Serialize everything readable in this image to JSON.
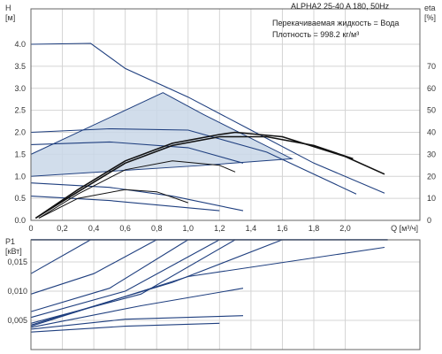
{
  "chart_data": [
    {
      "type": "line",
      "annotations": [
        "ALPHA2 25-40 A 180, 50Hz",
        "Перекачиваемая жидкость = Вода",
        "Плотность = 998.2 кг/м³"
      ],
      "ylabel_lines": [
        "H",
        "[м]"
      ],
      "y2label_lines": [
        "eta",
        "[%]"
      ],
      "xlabel": "Q [м³/ч]",
      "xlim": [
        0,
        2.5
      ],
      "ylim": [
        0,
        4.5
      ],
      "y2lim": [
        0,
        90
      ],
      "x_ticks": [
        "0",
        "0,2",
        "0,4",
        "0,6",
        "0,8",
        "1,0",
        "1,2",
        "1,4",
        "1,6",
        "1,8",
        "2,0"
      ],
      "y_ticks": [
        "0.0",
        "0.5",
        "1.0",
        "1.5",
        "2.0",
        "2.5",
        "3.0",
        "3.5",
        "4.0"
      ],
      "y2_ticks": [
        "0",
        "10",
        "20",
        "30",
        "40",
        "50",
        "60",
        "70"
      ],
      "grid": true,
      "shaded_region": [
        [
          0,
          1.2
        ],
        [
          0,
          1.5
        ],
        [
          0.84,
          2.9
        ],
        [
          1.1,
          2.4
        ],
        [
          1.66,
          1.4
        ],
        [
          1.1,
          1.25
        ],
        [
          0,
          1.0
        ]
      ],
      "series": [
        {
          "role": "head",
          "color": "#1f3f7f",
          "values": [
            [
              0,
              4.0
            ],
            [
              0.38,
              4.02
            ],
            [
              0.6,
              3.45
            ],
            [
              1.0,
              2.8
            ],
            [
              1.4,
              2.05
            ],
            [
              1.8,
              1.3
            ],
            [
              2.25,
              0.62
            ]
          ]
        },
        {
          "role": "head",
          "color": "#1f3f7f",
          "values": [
            [
              0,
              2.0
            ],
            [
              0.5,
              2.08
            ],
            [
              1.0,
              2.05
            ],
            [
              1.5,
              1.55
            ],
            [
              2.07,
              0.6
            ]
          ]
        },
        {
          "role": "head",
          "color": "#1f3f7f",
          "values": [
            [
              0,
              1.72
            ],
            [
              0.5,
              1.78
            ],
            [
              1.0,
              1.65
            ],
            [
              1.35,
              1.3
            ]
          ]
        },
        {
          "role": "head",
          "color": "#1f3f7f",
          "values": [
            [
              0,
              0.85
            ],
            [
              0.5,
              0.75
            ],
            [
              0.9,
              0.55
            ],
            [
              1.35,
              0.22
            ]
          ]
        },
        {
          "role": "head",
          "color": "#1f3f7f",
          "values": [
            [
              0,
              0.55
            ],
            [
              0.5,
              0.45
            ],
            [
              1.2,
              0.22
            ]
          ]
        },
        {
          "role": "efficiency",
          "color": "#111111",
          "values": [
            [
              0.03,
              1
            ],
            [
              0.3,
              14
            ],
            [
              0.6,
              27
            ],
            [
              0.9,
              35
            ],
            [
              1.2,
              39
            ],
            [
              1.3,
              40
            ],
            [
              1.6,
              38
            ],
            [
              2.0,
              29
            ],
            [
              2.25,
              21
            ]
          ]
        },
        {
          "role": "efficiency",
          "color": "#111111",
          "values": [
            [
              0.03,
              1
            ],
            [
              0.3,
              13
            ],
            [
              0.6,
              26
            ],
            [
              0.9,
              34
            ],
            [
              1.2,
              38
            ],
            [
              1.5,
              38
            ],
            [
              1.8,
              34
            ],
            [
              2.05,
              28
            ]
          ]
        },
        {
          "role": "efficiency",
          "color": "#111111",
          "values": [
            [
              0.05,
              1
            ],
            [
              0.3,
              12
            ],
            [
              0.6,
              23
            ],
            [
              0.9,
              27
            ],
            [
              1.2,
              25
            ],
            [
              1.3,
              22
            ]
          ]
        },
        {
          "role": "efficiency",
          "color": "#111111",
          "values": [
            [
              0.05,
              1
            ],
            [
              0.3,
              10
            ],
            [
              0.6,
              14
            ],
            [
              0.8,
              13
            ],
            [
              1.0,
              8
            ]
          ]
        }
      ]
    },
    {
      "type": "line",
      "ylabel_lines": [
        "P1",
        "[кВт]"
      ],
      "xlim": [
        0,
        2.5
      ],
      "ylim": [
        0,
        0.02
      ],
      "y_ticks": [
        "0,005",
        "0,010",
        "0,015"
      ],
      "grid": true,
      "series": [
        {
          "role": "power",
          "color": "#1f3f7f",
          "values": [
            [
              0,
              0.0188
            ],
            [
              2.27,
              0.0188
            ]
          ]
        },
        {
          "role": "power",
          "color": "#1f3f7f",
          "values": [
            [
              0,
              0.013
            ],
            [
              0.38,
              0.0188
            ]
          ]
        },
        {
          "role": "power",
          "color": "#1f3f7f",
          "values": [
            [
              0,
              0.0095
            ],
            [
              0.4,
              0.013
            ],
            [
              0.8,
              0.0188
            ]
          ]
        },
        {
          "role": "power",
          "color": "#1f3f7f",
          "values": [
            [
              0,
              0.0065
            ],
            [
              0.5,
              0.0105
            ],
            [
              1.0,
              0.0188
            ]
          ]
        },
        {
          "role": "power",
          "color": "#1f3f7f",
          "values": [
            [
              0,
              0.0055
            ],
            [
              0.6,
              0.01
            ],
            [
              1.2,
              0.0188
            ]
          ]
        },
        {
          "role": "power",
          "color": "#1f3f7f",
          "values": [
            [
              0,
              0.0045
            ],
            [
              0.7,
              0.0095
            ],
            [
              1.3,
              0.0188
            ]
          ]
        },
        {
          "role": "power",
          "color": "#1f3f7f",
          "values": [
            [
              0,
              0.0042
            ],
            [
              0.9,
              0.0115
            ],
            [
              1.6,
              0.0188
            ]
          ]
        },
        {
          "role": "power",
          "color": "#1f3f7f",
          "values": [
            [
              0,
              0.004
            ],
            [
              1.0,
              0.0125
            ],
            [
              2.25,
              0.0175
            ]
          ]
        },
        {
          "role": "power",
          "color": "#1f3f7f",
          "values": [
            [
              0,
              0.0038
            ],
            [
              0.7,
              0.0075
            ],
            [
              1.35,
              0.0105
            ]
          ]
        },
        {
          "role": "power",
          "color": "#1f3f7f",
          "values": [
            [
              0,
              0.0035
            ],
            [
              0.6,
              0.0052
            ],
            [
              1.35,
              0.0058
            ]
          ]
        },
        {
          "role": "power",
          "color": "#1f3f7f",
          "values": [
            [
              0,
              0.003
            ],
            [
              0.6,
              0.004
            ],
            [
              1.2,
              0.0045
            ]
          ]
        }
      ]
    }
  ]
}
